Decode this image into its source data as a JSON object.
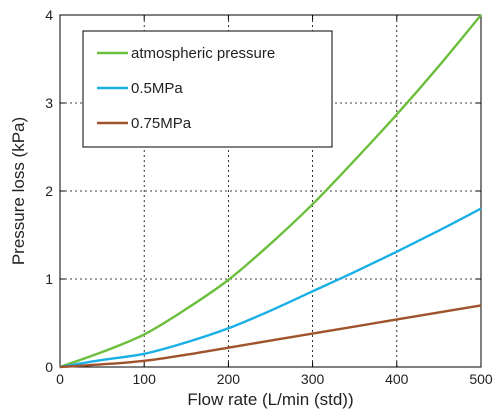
{
  "chart_data": {
    "type": "line",
    "title": "",
    "xlabel": "Flow rate (L/min (std))",
    "ylabel": "Pressure loss (kPa)",
    "xlim": [
      0,
      500
    ],
    "ylim": [
      0,
      4
    ],
    "xticks": [
      "0",
      "100",
      "200",
      "300",
      "400",
      "500"
    ],
    "yticks": [
      "0",
      "1",
      "2",
      "3",
      "4"
    ],
    "grid": true,
    "legend_position": "top-left",
    "series": [
      {
        "name": "atmospheric pressure",
        "color": "#6cbf3c",
        "x": [
          0,
          50,
          100,
          150,
          200,
          250,
          300,
          350,
          400,
          450,
          500
        ],
        "y": [
          0,
          0.17,
          0.37,
          0.66,
          0.99,
          1.4,
          1.85,
          2.35,
          2.87,
          3.42,
          4.0
        ]
      },
      {
        "name": "0.5MPa",
        "color": "#1ab0e6",
        "x": [
          0,
          50,
          100,
          150,
          200,
          250,
          300,
          350,
          400,
          450,
          500
        ],
        "y": [
          0,
          0.08,
          0.15,
          0.28,
          0.44,
          0.64,
          0.86,
          1.08,
          1.31,
          1.55,
          1.8
        ]
      },
      {
        "name": "0.75MPa",
        "color": "#a0522d",
        "x": [
          0,
          50,
          100,
          150,
          200,
          250,
          300,
          350,
          400,
          450,
          500
        ],
        "y": [
          0,
          0.03,
          0.07,
          0.14,
          0.22,
          0.3,
          0.38,
          0.46,
          0.54,
          0.62,
          0.7
        ]
      }
    ]
  }
}
